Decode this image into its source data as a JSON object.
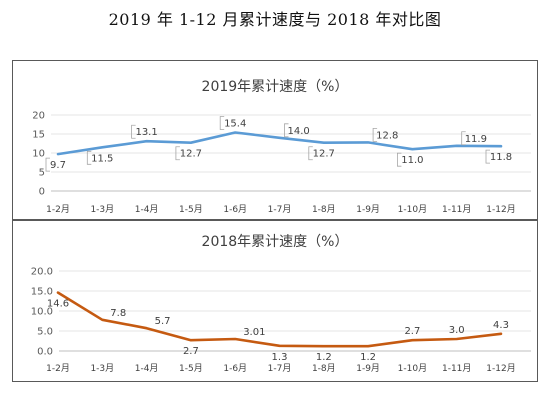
{
  "page_title": "2019 年 1-12 月累计速度与 2018 年对比图",
  "chart_data": [
    {
      "type": "line",
      "title": "2019年累计速度（%）",
      "xlabel": "",
      "ylabel": "",
      "categories": [
        "1-2月",
        "1-3月",
        "1-4月",
        "1-5月",
        "1-6月",
        "1-7月",
        "1-8月",
        "1-9月",
        "1-10月",
        "1-11月",
        "1-12月"
      ],
      "series": [
        {
          "values": [
            9.7,
            11.5,
            13.1,
            12.7,
            15.4,
            14.0,
            12.7,
            12.8,
            11.0,
            11.9,
            11.8
          ],
          "color": "#5b9bd5"
        }
      ],
      "data_labels": [
        "9.7",
        "11.5",
        "13.1",
        "12.7",
        "15.4",
        "14.0",
        "12.7",
        "12.8",
        "11.0",
        "11.9",
        "11.8"
      ],
      "ylim": [
        0,
        20
      ],
      "yticks": [
        "0",
        "5",
        "10",
        "15",
        "20"
      ],
      "grid": true,
      "legend": "none"
    },
    {
      "type": "line",
      "title": "2018年累计速度（%）",
      "xlabel": "",
      "ylabel": "",
      "categories": [
        "1-2月",
        "1-3月",
        "1-4月",
        "1-5月",
        "1-6月",
        "1-7月",
        "1-8月",
        "1-9月",
        "1-10月",
        "1-11月",
        "1-12月"
      ],
      "series": [
        {
          "values": [
            14.6,
            7.8,
            5.7,
            2.7,
            3.01,
            1.3,
            1.2,
            1.2,
            2.7,
            3.0,
            4.3
          ],
          "color": "#c55a11"
        }
      ],
      "data_labels": [
        "14.6",
        "7.8",
        "5.7",
        "2.7",
        "3.01",
        "1.3",
        "1.2",
        "1.2",
        "2.7",
        "3.0",
        "4.3"
      ],
      "ylim": [
        0,
        20
      ],
      "yticks": [
        "0.0",
        "5.0",
        "10.0",
        "15.0",
        "20.0"
      ],
      "grid": true,
      "legend": "none"
    }
  ]
}
